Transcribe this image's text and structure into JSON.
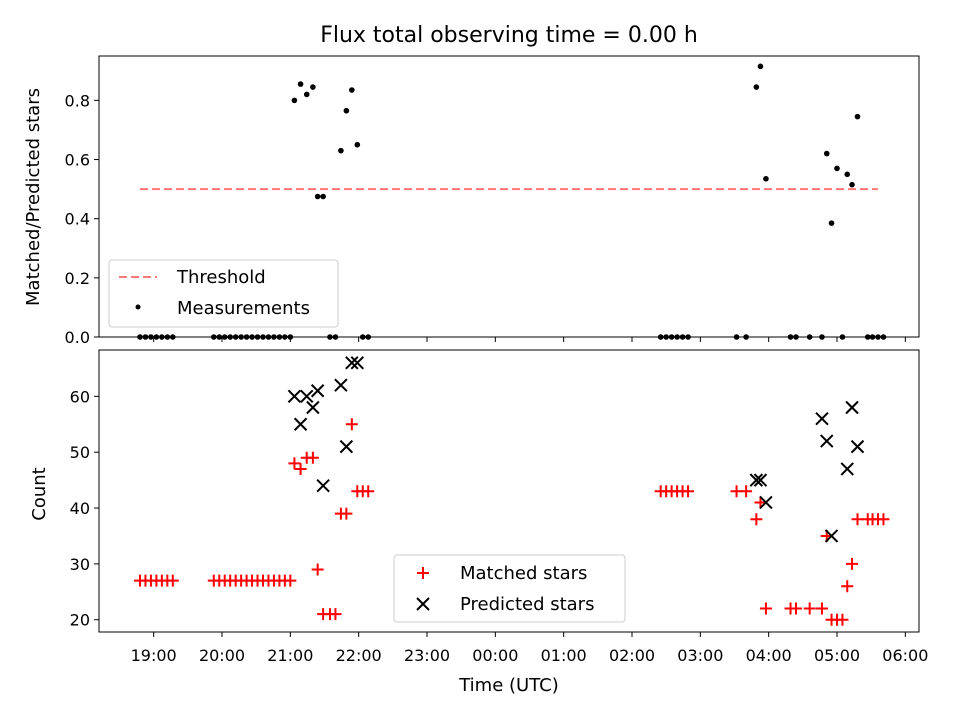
{
  "chart_data": [
    {
      "type": "scatter",
      "title": "Flux total observing time = 0.00 h",
      "xlabel": "",
      "ylabel": "Matched/Predicted stars",
      "ylim": [
        0,
        0.95
      ],
      "yticks": [
        "0.0",
        "0.2",
        "0.4",
        "0.6",
        "0.8"
      ],
      "ytick_values": [
        0.0,
        0.2,
        0.4,
        0.6,
        0.8
      ],
      "xlim_hours": [
        18.2,
        30.2
      ],
      "xtick_values": [
        19,
        20,
        21,
        22,
        23,
        24,
        25,
        26,
        27,
        28,
        29,
        30
      ],
      "legend_position": "lower-left",
      "series": [
        {
          "name": "Threshold",
          "kind": "line",
          "color": "#ff7777",
          "x": [
            18.8,
            29.6
          ],
          "y": [
            0.5,
            0.5
          ]
        },
        {
          "name": "Measurements",
          "kind": "dot",
          "color": "#000000",
          "x": [
            18.8,
            18.88,
            18.96,
            19.04,
            19.12,
            19.2,
            19.28,
            19.88,
            19.96,
            20.04,
            20.12,
            20.2,
            20.28,
            20.36,
            20.44,
            20.52,
            20.6,
            20.68,
            20.76,
            20.84,
            20.92,
            21.0,
            21.06,
            21.15,
            21.24,
            21.33,
            21.4,
            21.48,
            21.58,
            21.66,
            21.74,
            21.82,
            21.9,
            21.98,
            22.06,
            22.14,
            26.42,
            26.5,
            26.58,
            26.66,
            26.74,
            26.82,
            27.53,
            27.67,
            27.82,
            27.88,
            27.96,
            28.32,
            28.4,
            28.6,
            28.78,
            28.85,
            28.92,
            29.0,
            29.08,
            29.15,
            29.22,
            29.3,
            29.45,
            29.52,
            29.6,
            29.68
          ],
          "y": [
            0,
            0,
            0,
            0,
            0,
            0,
            0,
            0,
            0,
            0,
            0,
            0,
            0,
            0,
            0,
            0,
            0,
            0,
            0,
            0,
            0,
            0,
            0.8,
            0.855,
            0.82,
            0.845,
            0.475,
            0.475,
            0,
            0,
            0.63,
            0.765,
            0.835,
            0.65,
            0,
            0,
            0,
            0,
            0,
            0,
            0,
            0,
            0,
            0,
            0.845,
            0.915,
            0.535,
            0,
            0,
            0,
            0,
            0.62,
            0.385,
            0.57,
            0,
            0.55,
            0.515,
            0.745,
            0,
            0,
            0,
            0
          ]
        }
      ]
    },
    {
      "type": "scatter",
      "title": "",
      "xlabel": "Time (UTC)",
      "ylabel": "Count",
      "ylim": [
        17.8,
        68.3
      ],
      "yticks": [
        "20",
        "30",
        "40",
        "50",
        "60"
      ],
      "ytick_values": [
        20,
        30,
        40,
        50,
        60
      ],
      "xlim_hours": [
        18.2,
        30.2
      ],
      "xtick_values": [
        19,
        20,
        21,
        22,
        23,
        24,
        25,
        26,
        27,
        28,
        29,
        30
      ],
      "xtick_labels": [
        "19:00",
        "20:00",
        "21:00",
        "22:00",
        "23:00",
        "00:00",
        "01:00",
        "02:00",
        "03:00",
        "04:00",
        "05:00",
        "06:00"
      ],
      "legend_position": "lower-center",
      "series": [
        {
          "name": "Matched stars",
          "marker": "plus",
          "color": "#ff0000",
          "x": [
            18.8,
            18.88,
            18.96,
            19.04,
            19.12,
            19.2,
            19.28,
            19.88,
            19.96,
            20.04,
            20.12,
            20.2,
            20.28,
            20.36,
            20.44,
            20.52,
            20.6,
            20.68,
            20.76,
            20.84,
            20.92,
            21.0,
            21.06,
            21.15,
            21.24,
            21.33,
            21.4,
            21.48,
            21.58,
            21.66,
            21.74,
            21.82,
            21.9,
            21.98,
            22.06,
            22.14,
            26.42,
            26.5,
            26.58,
            26.66,
            26.74,
            26.82,
            27.53,
            27.67,
            27.82,
            27.88,
            27.96,
            28.32,
            28.4,
            28.6,
            28.78,
            28.85,
            28.92,
            29.0,
            29.08,
            29.15,
            29.22,
            29.3,
            29.45,
            29.52,
            29.6,
            29.68
          ],
          "y": [
            27,
            27,
            27,
            27,
            27,
            27,
            27,
            27,
            27,
            27,
            27,
            27,
            27,
            27,
            27,
            27,
            27,
            27,
            27,
            27,
            27,
            27,
            48,
            47,
            49,
            49,
            29,
            21,
            21,
            21,
            39,
            39,
            55,
            43,
            43,
            43,
            43,
            43,
            43,
            43,
            43,
            43,
            43,
            43,
            38,
            41,
            22,
            22,
            22,
            22,
            22,
            35,
            20,
            20,
            20,
            26,
            30,
            38,
            38,
            38,
            38,
            38
          ]
        },
        {
          "name": "Predicted stars",
          "marker": "x",
          "color": "#000000",
          "x": [
            21.06,
            21.15,
            21.24,
            21.33,
            21.4,
            21.48,
            21.74,
            21.82,
            21.9,
            21.98,
            27.82,
            27.88,
            27.96,
            28.78,
            28.85,
            28.92,
            29.15,
            29.22,
            29.3
          ],
          "y": [
            60,
            55,
            60,
            58,
            61,
            44,
            62,
            51,
            66,
            66,
            45,
            45,
            41,
            56,
            52,
            35,
            47,
            58,
            51
          ]
        }
      ]
    }
  ]
}
